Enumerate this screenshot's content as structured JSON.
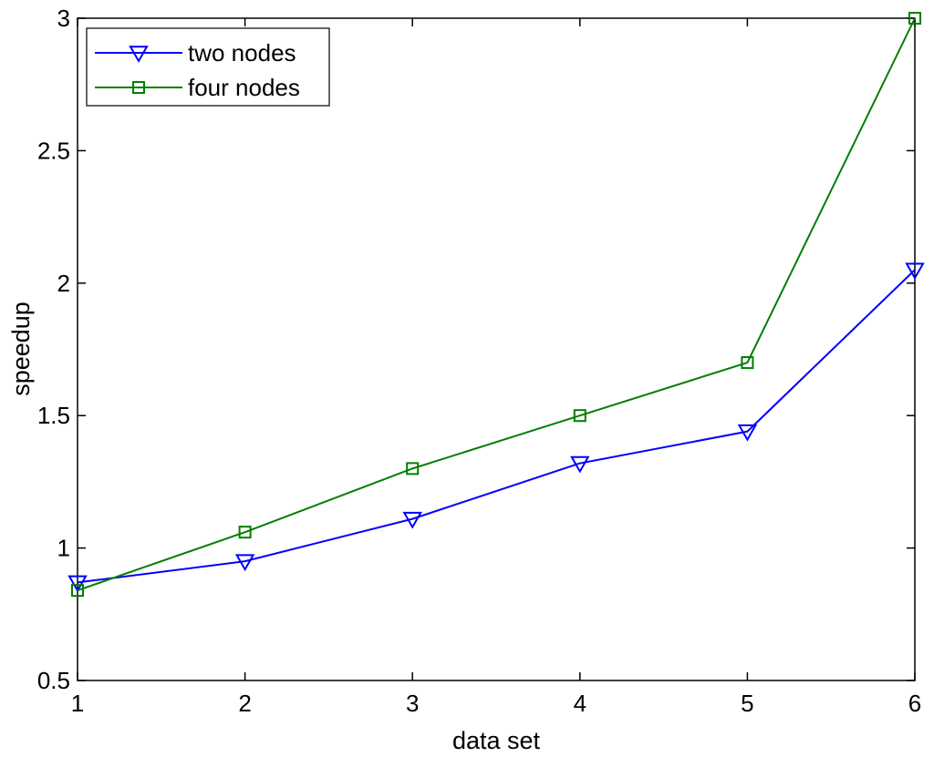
{
  "chart_data": {
    "type": "line",
    "title": "",
    "xlabel": "data set",
    "ylabel": "speedup",
    "xlim": [
      1,
      6
    ],
    "ylim": [
      0.5,
      3
    ],
    "xticks": [
      1,
      2,
      3,
      4,
      5,
      6
    ],
    "yticks": [
      0.5,
      1,
      1.5,
      2,
      2.5,
      3
    ],
    "xtick_labels": [
      "1",
      "2",
      "3",
      "4",
      "5",
      "6"
    ],
    "ytick_labels": [
      "0.5",
      "1",
      "1.5",
      "2",
      "2.5",
      "3"
    ],
    "grid": false,
    "legend_position": "top-left",
    "x": [
      1,
      2,
      3,
      4,
      5,
      6
    ],
    "series": [
      {
        "name": "two nodes",
        "color": "#0000ff",
        "marker": "triangle-down",
        "values": [
          0.87,
          0.95,
          1.11,
          1.32,
          1.44,
          2.05
        ]
      },
      {
        "name": "four nodes",
        "color": "#007f00",
        "marker": "square",
        "values": [
          0.84,
          1.06,
          1.3,
          1.5,
          1.7,
          3.0
        ]
      }
    ]
  }
}
